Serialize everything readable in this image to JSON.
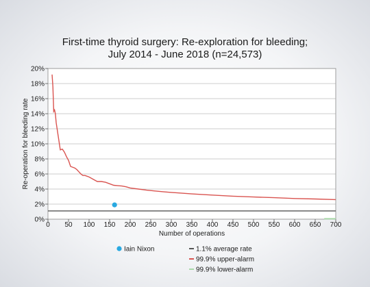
{
  "chart_data": {
    "type": "line",
    "title": [
      "First-time thyroid surgery: Re-exploration for bleeding;",
      "July 2014 - June 2018 (n=24,573)"
    ],
    "xlabel": "Number of operations",
    "ylabel": "Re-operation for bleeding rate",
    "xlim": [
      0,
      700
    ],
    "ylim": [
      0,
      20
    ],
    "x_ticks": [
      "0",
      "50",
      "100",
      "150",
      "200",
      "250",
      "300",
      "350",
      "400",
      "450",
      "500",
      "550",
      "600",
      "650",
      "700"
    ],
    "y_ticks": [
      "0%",
      "2%",
      "4%",
      "6%",
      "8%",
      "10%",
      "12%",
      "14%",
      "16%",
      "18%",
      "20%"
    ],
    "grid": "horizontal",
    "legend_position": "bottom",
    "series": [
      {
        "name": "1.1% average rate",
        "color": "#555555",
        "style": "line",
        "x": [
          0,
          700
        ],
        "y": [
          1.1,
          1.1
        ]
      },
      {
        "name": "99.9% upper-alarm",
        "color": "#d9534f",
        "style": "line",
        "x": [
          10,
          12,
          14,
          16,
          18,
          20,
          25,
          30,
          35,
          40,
          45,
          50,
          55,
          60,
          65,
          70,
          75,
          80,
          85,
          90,
          100,
          110,
          120,
          130,
          140,
          150,
          160,
          170,
          180,
          190,
          200,
          220,
          240,
          260,
          280,
          300,
          350,
          400,
          450,
          500,
          550,
          600,
          650,
          700
        ],
        "y": [
          19.2,
          17.6,
          14.3,
          14.5,
          14.0,
          12.8,
          11.0,
          9.2,
          9.3,
          8.9,
          8.3,
          7.8,
          7.0,
          6.9,
          6.8,
          6.6,
          6.3,
          6.0,
          5.8,
          5.8,
          5.6,
          5.3,
          5.0,
          5.0,
          4.9,
          4.7,
          4.5,
          4.45,
          4.4,
          4.3,
          4.15,
          4.0,
          3.85,
          3.75,
          3.65,
          3.55,
          3.35,
          3.2,
          3.05,
          2.95,
          2.85,
          2.75,
          2.68,
          2.6
        ]
      },
      {
        "name": "99.9% lower-alarm",
        "color": "#a8d8a8",
        "style": "line",
        "x": [
          672,
          700
        ],
        "y": [
          0.05,
          0.05
        ]
      },
      {
        "name": "Iain Nixon",
        "color": "#29a9e1",
        "style": "point",
        "x": [
          162
        ],
        "y": [
          1.9
        ]
      }
    ]
  }
}
